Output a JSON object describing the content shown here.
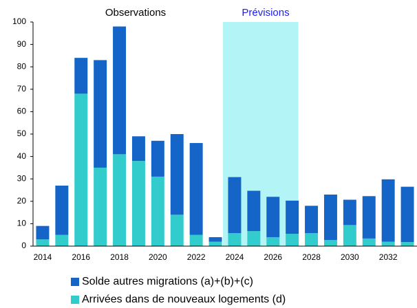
{
  "chart_data": {
    "type": "stacked_bar",
    "categories": [
      "2014",
      null,
      "2016",
      null,
      "2018",
      null,
      "2020",
      null,
      "2022",
      null,
      "2024",
      null,
      "2026",
      null,
      "2028",
      null,
      "2030",
      null,
      "2032",
      null
    ],
    "series": [
      {
        "name": "Solde autres migrations (a)+(b)+(c)",
        "color": "#1565c8",
        "values": [
          6,
          22,
          16,
          48,
          57,
          11,
          16,
          36,
          41,
          2,
          25,
          18,
          18,
          14.8,
          12.2,
          20.3,
          11.3,
          18.9,
          27.8,
          24.7
        ]
      },
      {
        "name": "Arrivées dans de nouveaux logements (d)",
        "color": "#33cccc",
        "values": [
          3,
          5,
          68,
          35,
          41,
          38,
          31,
          14,
          5,
          2,
          5.8,
          6.7,
          4,
          5.5,
          5.8,
          2.7,
          9.4,
          3.4,
          2,
          1.8
        ]
      }
    ],
    "annotations": [
      "Observations",
      "Prévisions"
    ],
    "ylim": [
      0,
      100
    ],
    "yticks": [
      0,
      10,
      20,
      30,
      40,
      50,
      60,
      70,
      80,
      90,
      100
    ],
    "grid": false
  }
}
